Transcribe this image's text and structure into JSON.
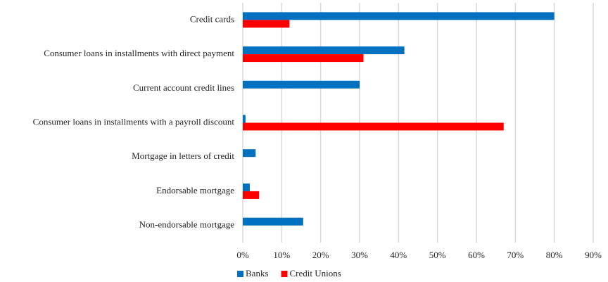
{
  "chart_data": {
    "type": "hbar",
    "categories": [
      "Credit cards",
      "Consumer loans in installments with direct payment",
      "Current account credit lines",
      "Consumer loans in installments with a payroll discount",
      "Mortgage in letters of credit",
      "Endorsable mortgage",
      "Non-endorsable mortgage"
    ],
    "series": [
      {
        "name": "Banks",
        "color": "#0070c0",
        "values": [
          80,
          41.5,
          30,
          0.7,
          3.3,
          1.8,
          15.5
        ]
      },
      {
        "name": "Credit Unions",
        "color": "#ff0000",
        "values": [
          12,
          31,
          null,
          67,
          null,
          4.2,
          null
        ]
      }
    ],
    "xlim": [
      0,
      90
    ],
    "xticks": [
      {
        "value": 0,
        "label": "0%"
      },
      {
        "value": 10,
        "label": "10%"
      },
      {
        "value": 20,
        "label": "20%"
      },
      {
        "value": 30,
        "label": "30%"
      },
      {
        "value": 40,
        "label": "40%"
      },
      {
        "value": 50,
        "label": "50%"
      },
      {
        "value": 60,
        "label": "60%"
      },
      {
        "value": 70,
        "label": "70%"
      },
      {
        "value": 80,
        "label": "80%"
      },
      {
        "value": 90,
        "label": "90%"
      }
    ],
    "grid": true,
    "legend": "bottom"
  }
}
